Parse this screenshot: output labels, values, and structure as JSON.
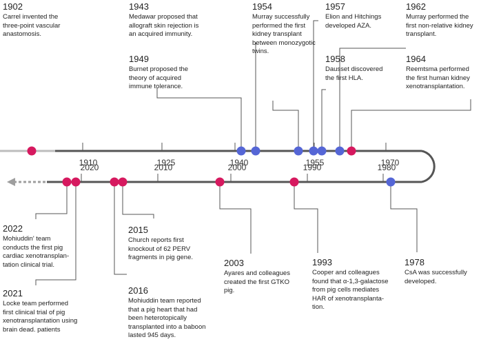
{
  "colors": {
    "axis": "#555555",
    "axis_light": "#bdbdbd",
    "dot_magenta": "#d6195f",
    "dot_blue": "#5566d6",
    "arrow_gray": "#9e9e9e"
  },
  "top_axis": {
    "tick_labels": [
      "1910",
      "1925",
      "1940",
      "1955",
      "1970"
    ]
  },
  "bottom_axis": {
    "tick_labels": [
      "2020",
      "2010",
      "2000",
      "1990",
      "1980"
    ]
  },
  "events": [
    {
      "id": "e1902",
      "year": "1902",
      "text": "Carrel invented the\nthree-point vascular\nanastomosis.",
      "color": "magenta"
    },
    {
      "id": "e1943",
      "year": "1943",
      "text": "Medawar proposed that\nallograft skin rejection is\nan acquired immunity.",
      "color": "blue"
    },
    {
      "id": "e1949",
      "year": "1949",
      "text": "Burnet proposed the\ntheory of acquired\nimmune tolerance.",
      "color": "blue"
    },
    {
      "id": "e1954",
      "year": "1954",
      "text": "Murray successfully\nperformed the first\nkidney transplant\nbetween monozygotic\ntwins.",
      "color": "blue"
    },
    {
      "id": "e1957",
      "year": "1957",
      "text": "Elion and Hitchings\ndeveloped AZA.",
      "color": "blue"
    },
    {
      "id": "e1958",
      "year": "1958",
      "text": "Dausset discovered\nthe first HLA.",
      "color": "blue"
    },
    {
      "id": "e1962",
      "year": "1962",
      "text": "Murray performed the\nfirst non-relative kidney\ntransplant.",
      "color": "blue"
    },
    {
      "id": "e1964",
      "year": "1964",
      "text": "Reemtsma performed\nthe first human kidney\nxenotransplantation.",
      "color": "magenta"
    },
    {
      "id": "e2022",
      "year": "2022",
      "text": "Mohiuddin' team\nconducts the first pig\ncardiac xenotransplan-\ntation clinical trial.",
      "color": "magenta"
    },
    {
      "id": "e2021",
      "year": "2021",
      "text": "Locke team performed\nfirst clinical trial of pig\nxenotransplantation using\nbrain dead. patients",
      "color": "magenta"
    },
    {
      "id": "e2015",
      "year": "2015",
      "text": "Church reports first\nknockout of 62 PERV\nfragments in pig gene.",
      "color": "magenta"
    },
    {
      "id": "e2016",
      "year": "2016",
      "text": "Mohiuddin team reported\nthat a pig heart that had\nbeen heterotopically\ntransplanted into a baboon\nlasted 945 days.",
      "color": "magenta"
    },
    {
      "id": "e2003",
      "year": "2003",
      "text": "Ayares and colleagues\ncreated the first GTKO\npig.",
      "color": "magenta"
    },
    {
      "id": "e1993",
      "year": "1993",
      "text": "Cooper and colleagues\nfound that α-1,3-galactose\nfrom pig cells mediates\nHAR of xenotransplanta-\ntion.",
      "color": "magenta"
    },
    {
      "id": "e1978",
      "year": "1978",
      "text": "CsA was successfully\ndeveloped.",
      "color": "blue"
    }
  ]
}
